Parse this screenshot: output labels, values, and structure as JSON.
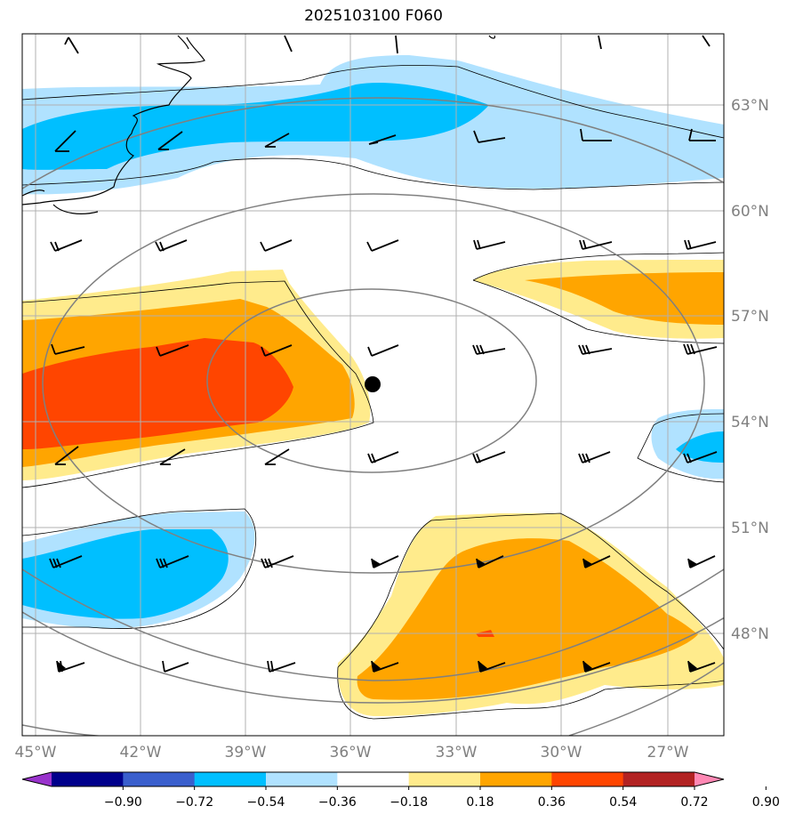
{
  "title": "2025103100 F060",
  "map": {
    "lon_ticks": [
      "45°W",
      "42°W",
      "39°W",
      "36°W",
      "33°W",
      "30°W",
      "27°W"
    ],
    "lat_ticks": [
      "63°N",
      "60°N",
      "57°N",
      "54°N",
      "51°N",
      "48°N"
    ]
  },
  "colorbar": {
    "levels": [
      "−0.90",
      "−0.72",
      "−0.54",
      "−0.36",
      "−0.18",
      "0.18",
      "0.36",
      "0.54",
      "0.72",
      "0.90"
    ],
    "colors": [
      "#9933cc",
      "#00008b",
      "#3a5fcd",
      "#00bfff",
      "#b0e2ff",
      "#ffffff",
      "#ffeb8c",
      "#ffa500",
      "#ff4500",
      "#b22222",
      "#ff88b4"
    ]
  },
  "colors": {
    "light_blue": "#b0e2ff",
    "blue": "#00bfff",
    "yellow": "#ffeb8c",
    "orange": "#ffa500",
    "red_orange": "#ff4500",
    "contour_gray": "#808080",
    "grid": "#b0b0b0"
  },
  "marker": {
    "symbol": "center-dot"
  }
}
